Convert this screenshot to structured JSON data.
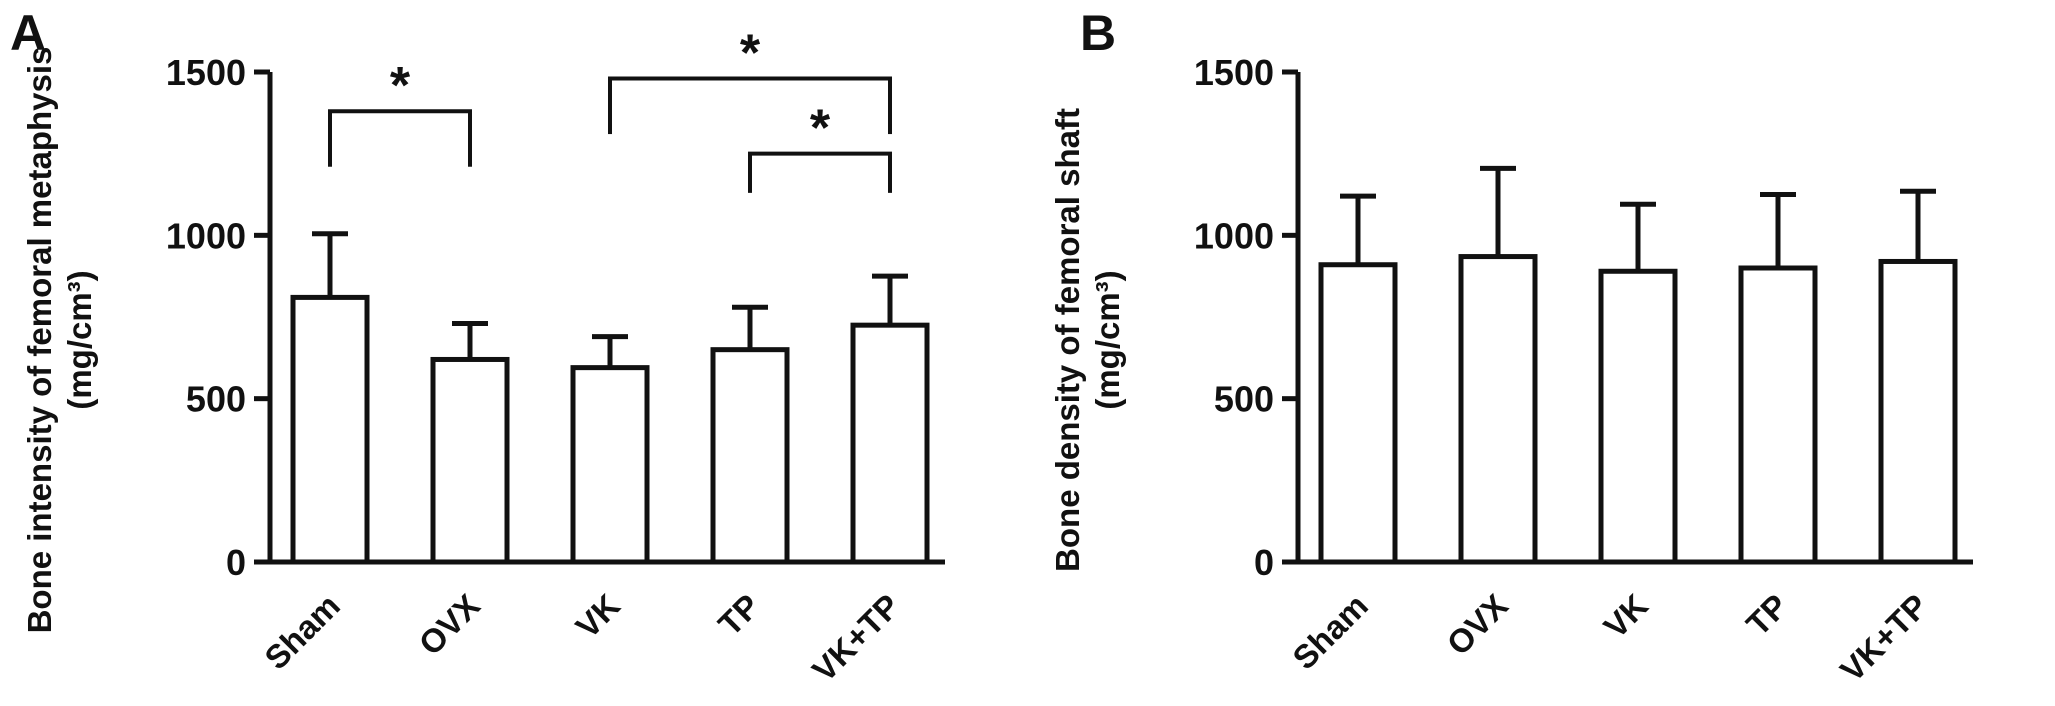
{
  "figure": {
    "background": "#ffffff",
    "ink_color": "#111111"
  },
  "chart_data": [
    {
      "type": "bar",
      "panel_label": "A",
      "title": "",
      "ylabel_line1": "Bone intensity of femoral metaphysis",
      "ylabel_line2": "(mg/cm³)",
      "xlabel": "",
      "categories": [
        "Sham",
        "OVX",
        "VK",
        "TP",
        "VK+TP"
      ],
      "values": [
        810,
        620,
        595,
        650,
        725
      ],
      "errors": [
        195,
        110,
        95,
        130,
        150
      ],
      "ylim": [
        0,
        1500
      ],
      "yticks": [
        0,
        500,
        1000,
        1500
      ],
      "grid": false,
      "legend": "none",
      "bar_fill": "#ffffff",
      "bar_stroke": "#111111",
      "significance": [
        {
          "from": "Sham",
          "to": "OVX",
          "label": "*",
          "y": 1380,
          "drop": 170
        },
        {
          "from": "VK",
          "to": "VK+TP",
          "label": "*",
          "y": 1480,
          "drop": 170
        },
        {
          "from": "TP",
          "to": "VK+TP",
          "label": "*",
          "y": 1250,
          "drop": 120
        }
      ]
    },
    {
      "type": "bar",
      "panel_label": "B",
      "title": "",
      "ylabel_line1": "Bone density of femoral shaft",
      "ylabel_line2": "(mg/cm³)",
      "xlabel": "",
      "categories": [
        "Sham",
        "OVX",
        "VK",
        "TP",
        "VK+TP"
      ],
      "values": [
        910,
        935,
        890,
        900,
        920
      ],
      "errors": [
        210,
        270,
        205,
        225,
        215
      ],
      "ylim": [
        0,
        1500
      ],
      "yticks": [
        0,
        500,
        1000,
        1500
      ],
      "grid": false,
      "legend": "none",
      "bar_fill": "#ffffff",
      "bar_stroke": "#111111",
      "significance": []
    }
  ]
}
